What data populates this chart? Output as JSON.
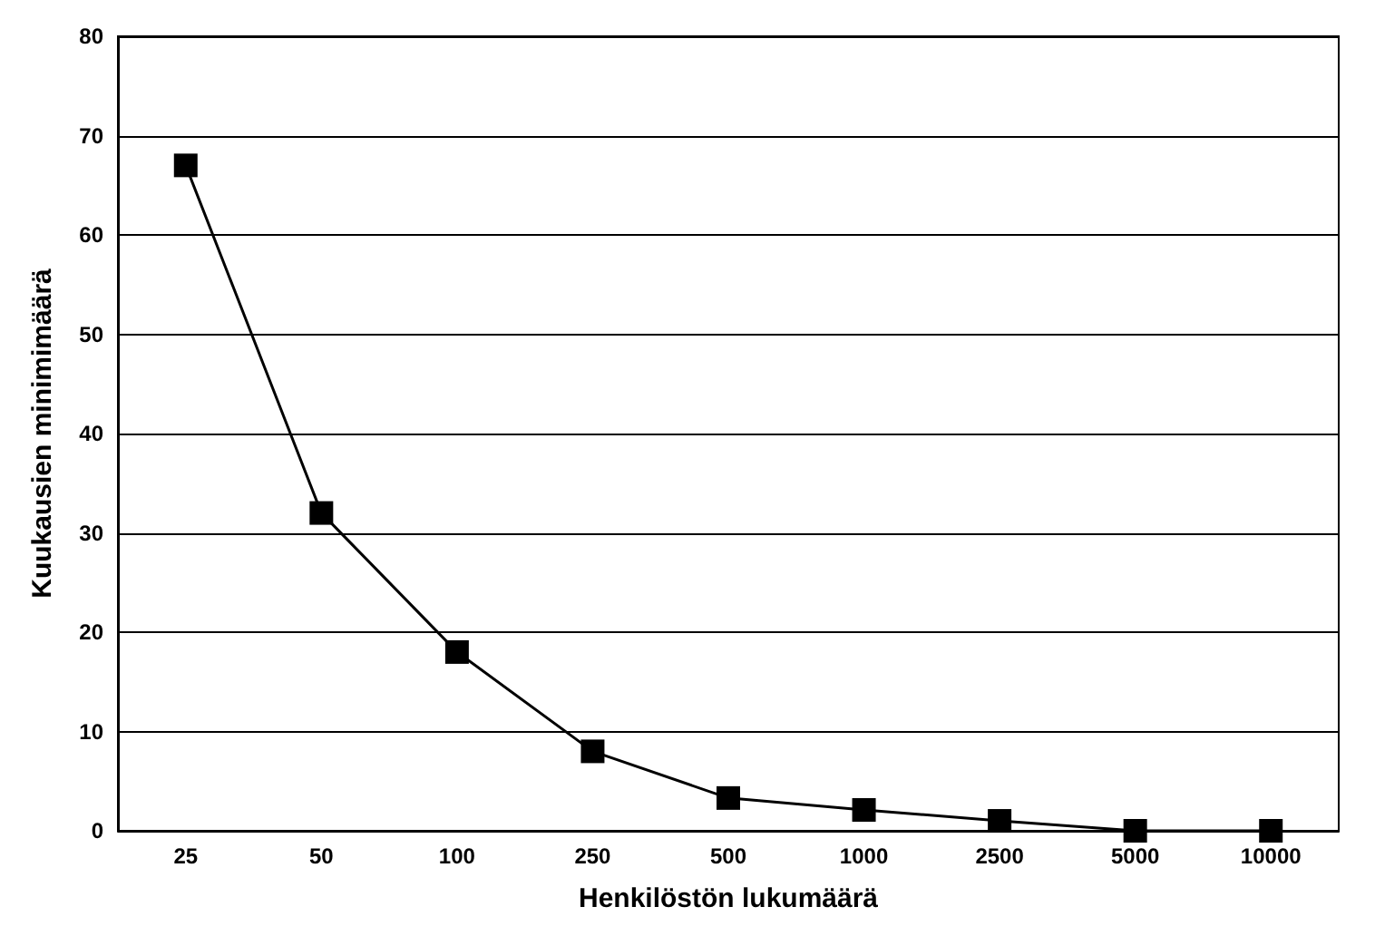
{
  "chart_data": {
    "type": "line",
    "xlabel": "Henkilöstön lukumäärä",
    "ylabel": "Kuukausien minimimäärä",
    "categories": [
      "25",
      "50",
      "100",
      "250",
      "500",
      "1000",
      "2500",
      "5000",
      "10000"
    ],
    "series": [
      {
        "color": "#000000",
        "values": [
          67,
          32,
          18,
          8,
          3.3,
          2.1,
          1,
          0,
          0
        ]
      }
    ],
    "ylim": [
      0,
      80
    ],
    "yticks": [
      0,
      10,
      20,
      30,
      40,
      50,
      60,
      70,
      80
    ],
    "grid": "y",
    "marker": "square",
    "line_style": "solid"
  }
}
